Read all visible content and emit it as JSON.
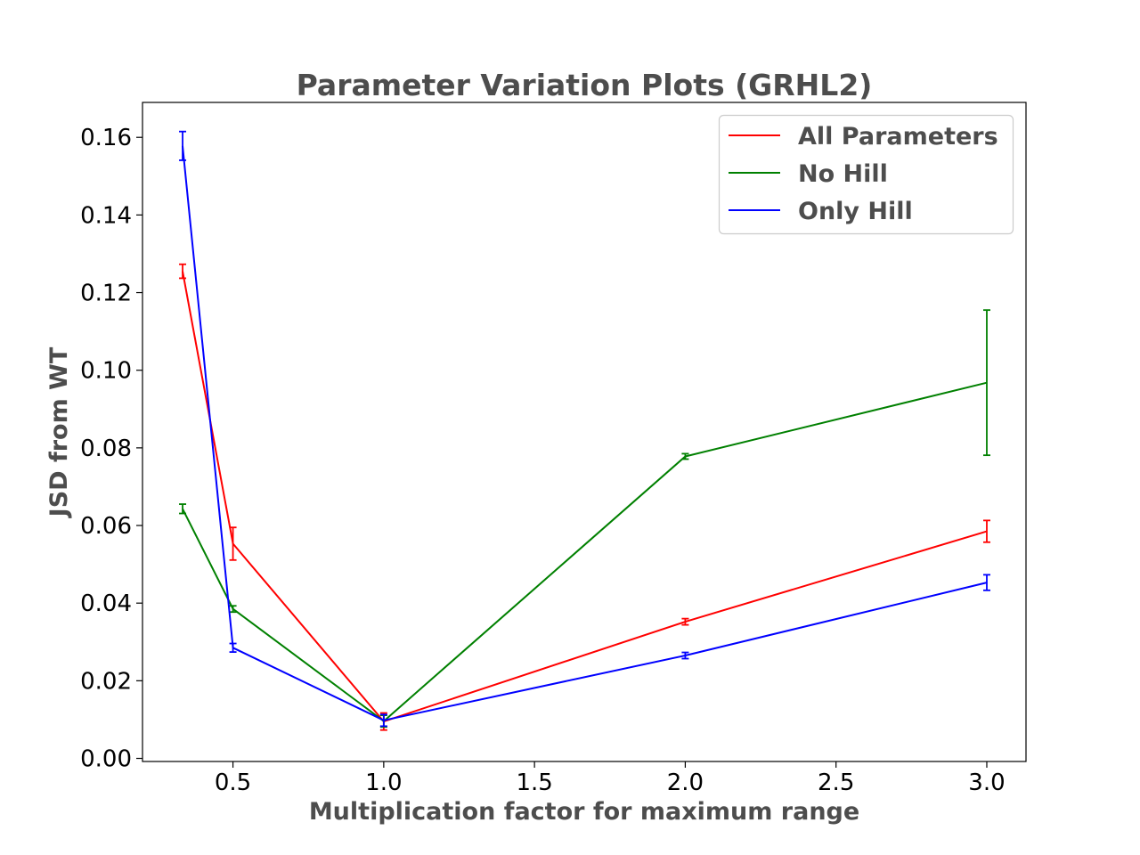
{
  "chart_data": {
    "type": "line",
    "title": "Parameter Variation Plots (GRHL2)",
    "xlabel": "Multiplication factor for maximum range",
    "ylabel": "JSD from WT",
    "xlim": [
      0.2,
      3.13
    ],
    "ylim": [
      -0.0008,
      0.169
    ],
    "x_ticks": [
      0.5,
      1.0,
      1.5,
      2.0,
      2.5,
      3.0
    ],
    "x_tick_labels": [
      "0.5",
      "1.0",
      "1.5",
      "2.0",
      "2.5",
      "3.0"
    ],
    "y_ticks": [
      0.0,
      0.02,
      0.04,
      0.06,
      0.08,
      0.1,
      0.12,
      0.14,
      0.16
    ],
    "y_tick_labels": [
      "0.00",
      "0.02",
      "0.04",
      "0.06",
      "0.08",
      "0.10",
      "0.12",
      "0.14",
      "0.16"
    ],
    "grid": false,
    "legend_position": "top-right",
    "x": [
      0.333,
      0.5,
      1.0,
      2.0,
      3.0
    ],
    "series": [
      {
        "name": "All Parameters",
        "color": "#ff0000",
        "values": [
          0.1255,
          0.0553,
          0.0095,
          0.0352,
          0.0585
        ],
        "errors": [
          0.0018,
          0.0042,
          0.0022,
          0.0008,
          0.0028
        ]
      },
      {
        "name": "No Hill",
        "color": "#008000",
        "values": [
          0.0643,
          0.0385,
          0.0096,
          0.0778,
          0.0968
        ],
        "errors": [
          0.0012,
          0.0008,
          0.0015,
          0.0007,
          0.0187
        ]
      },
      {
        "name": "Only Hill",
        "color": "#0000ff",
        "values": [
          0.1578,
          0.0285,
          0.0098,
          0.0265,
          0.0453
        ],
        "errors": [
          0.0037,
          0.0011,
          0.0015,
          0.0008,
          0.002
        ]
      }
    ]
  }
}
